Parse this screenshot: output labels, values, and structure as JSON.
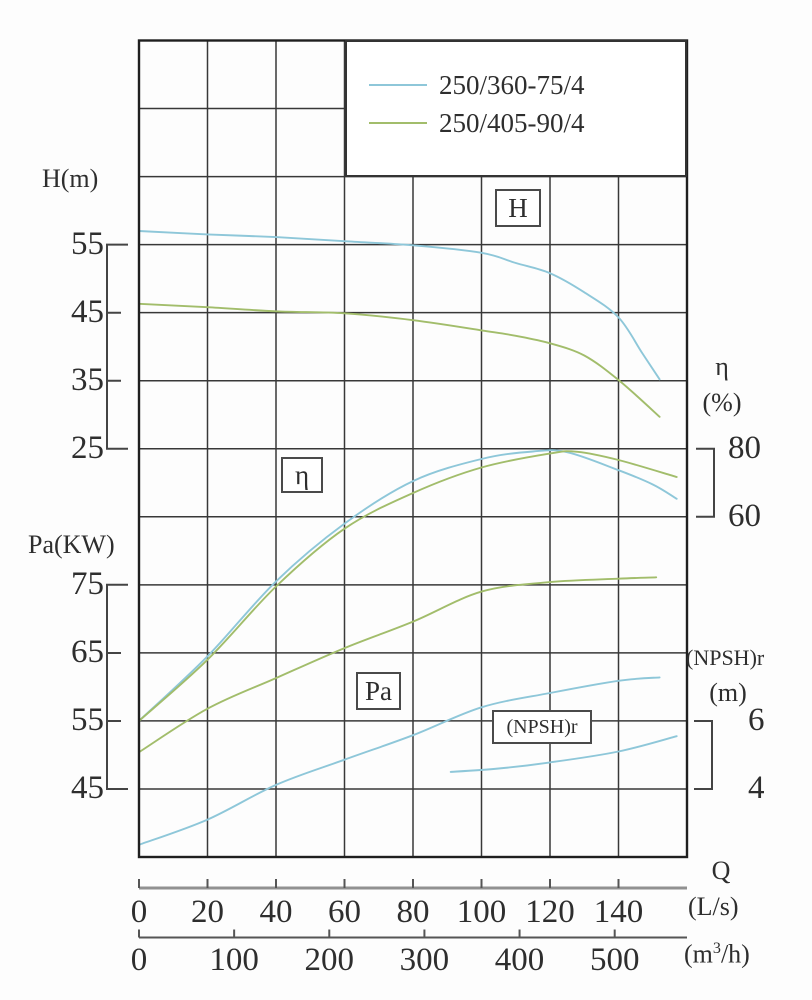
{
  "legend": {
    "items": [
      {
        "label": "250/360-75/4",
        "color": "#8ec7d9"
      },
      {
        "label": "250/405-90/4",
        "color": "#a2bd6b"
      }
    ]
  },
  "axes_titles": {
    "h": "H(m)",
    "pa": "Pa(KW)",
    "eta": "η",
    "eta_unit": "(%)",
    "npsh": "(NPSH)r",
    "npsh_unit": "(m)",
    "q": "Q",
    "q_unit_ls": "(L/s)",
    "q_unit_m3h_pre": "(m",
    "q_unit_m3h_sup": "3",
    "q_unit_m3h_post": "/h)"
  },
  "curve_labels": {
    "h": "H",
    "eta": "η",
    "pa": "Pa",
    "npsh": "(NPSH)r"
  },
  "chart_data": {
    "type": "line",
    "title": "",
    "grid": true,
    "legend_position": "top-right",
    "x_axes": [
      {
        "unit": "(L/s)",
        "ticks": [
          0,
          20,
          40,
          60,
          80,
          100,
          120,
          140
        ],
        "range": [
          0,
          160
        ]
      },
      {
        "unit": "(m3/h)",
        "ticks": [
          0,
          100,
          200,
          300,
          400,
          500
        ],
        "range": [
          0,
          576
        ]
      }
    ],
    "y_axes": [
      {
        "name": "H",
        "unit": "m",
        "label_ticks": [
          55,
          45,
          35,
          25
        ],
        "first_tick_row": 3,
        "units_per_row": 10,
        "side": "left"
      },
      {
        "name": "Pa",
        "unit": "KW",
        "label_ticks": [
          75,
          65,
          55,
          45
        ],
        "first_tick_row": 8,
        "units_per_row": 10,
        "side": "left"
      },
      {
        "name": "eta",
        "unit": "%",
        "label_ticks": [
          80,
          60
        ],
        "first_tick_row": 6,
        "units_per_row": 20,
        "side": "right"
      },
      {
        "name": "NPSHr",
        "unit": "m",
        "label_ticks": [
          6,
          4
        ],
        "first_tick_row": 10,
        "units_per_row": 2,
        "side": "right"
      }
    ],
    "series": [
      {
        "id": "H-250/360-75/4",
        "model": "250/360-75/4",
        "quantity": "H",
        "color": "#8ec7d9",
        "points": [
          [
            0,
            57
          ],
          [
            20,
            56.5
          ],
          [
            40,
            56.1
          ],
          [
            60,
            55.5
          ],
          [
            80,
            54.9
          ],
          [
            100,
            53.8
          ],
          [
            110,
            52.3
          ],
          [
            120,
            50.8
          ],
          [
            130,
            48.0
          ],
          [
            140,
            44.3
          ],
          [
            147,
            39.0
          ],
          [
            152,
            35.2
          ]
        ]
      },
      {
        "id": "H-250/405-90/4",
        "model": "250/405-90/4",
        "quantity": "H",
        "color": "#a2bd6b",
        "points": [
          [
            0,
            46.3
          ],
          [
            20,
            45.8
          ],
          [
            40,
            45.2
          ],
          [
            60,
            44.9
          ],
          [
            80,
            43.9
          ],
          [
            100,
            42.4
          ],
          [
            110,
            41.6
          ],
          [
            120,
            40.5
          ],
          [
            130,
            38.7
          ],
          [
            140,
            35.1
          ],
          [
            152,
            29.7
          ]
        ]
      },
      {
        "id": "eta-250/360-75/4",
        "model": "250/360-75/4",
        "quantity": "eta",
        "color": "#8ec7d9",
        "points": [
          [
            0,
            0
          ],
          [
            20,
            19
          ],
          [
            40,
            41
          ],
          [
            60,
            58
          ],
          [
            80,
            70.5
          ],
          [
            100,
            77
          ],
          [
            115,
            79.2
          ],
          [
            125,
            79.0
          ],
          [
            140,
            73.7
          ],
          [
            150,
            69.5
          ],
          [
            157,
            65.3
          ]
        ]
      },
      {
        "id": "eta-250/405-90/4",
        "model": "250/405-90/4",
        "quantity": "eta",
        "color": "#a2bd6b",
        "points": [
          [
            0,
            0
          ],
          [
            20,
            18
          ],
          [
            40,
            39.5
          ],
          [
            60,
            56.5
          ],
          [
            80,
            67
          ],
          [
            100,
            74.5
          ],
          [
            120,
            78.6
          ],
          [
            128,
            79.1
          ],
          [
            140,
            76.7
          ],
          [
            157,
            71.7
          ]
        ]
      },
      {
        "id": "Pa-250/360-75/4",
        "model": "250/360-75/4",
        "quantity": "Pa",
        "color": "#8ec7d9",
        "points": [
          [
            0,
            36.8
          ],
          [
            20,
            40.5
          ],
          [
            40,
            45.6
          ],
          [
            60,
            49.3
          ],
          [
            80,
            52.9
          ],
          [
            100,
            57.0
          ],
          [
            120,
            59.1
          ],
          [
            140,
            60.9
          ],
          [
            152,
            61.4
          ]
        ]
      },
      {
        "id": "Pa-250/405-90/4",
        "model": "250/405-90/4",
        "quantity": "Pa",
        "color": "#a2bd6b",
        "points": [
          [
            0,
            50.4
          ],
          [
            20,
            56.8
          ],
          [
            40,
            61.3
          ],
          [
            60,
            65.7
          ],
          [
            80,
            69.6
          ],
          [
            100,
            74.0
          ],
          [
            120,
            75.4
          ],
          [
            140,
            75.9
          ],
          [
            151,
            76.1
          ]
        ]
      },
      {
        "id": "NPSHr-250/360-75/4",
        "model": "250/360-75/4",
        "quantity": "NPSHr",
        "color": "#8ec7d9",
        "points": [
          [
            91,
            4.5
          ],
          [
            105,
            4.6
          ],
          [
            120,
            4.78
          ],
          [
            140,
            5.1
          ],
          [
            157,
            5.55
          ]
        ]
      }
    ]
  }
}
